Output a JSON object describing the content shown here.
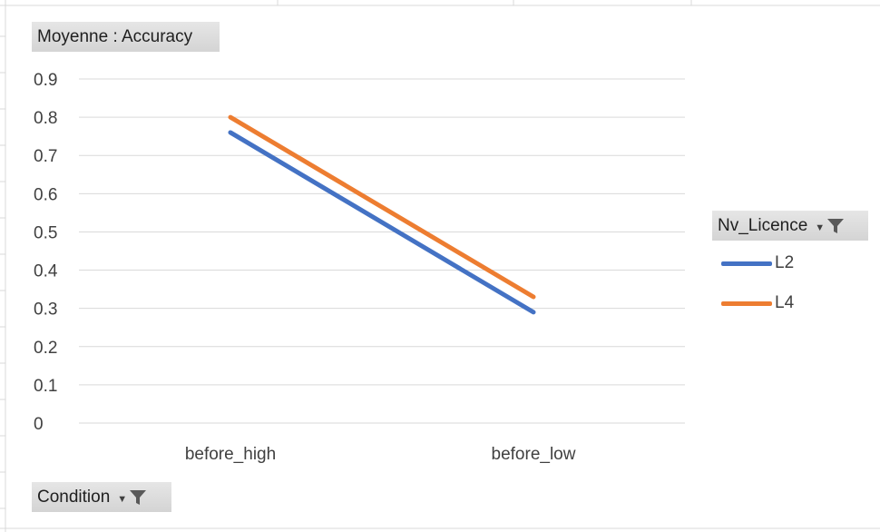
{
  "chart_data": {
    "type": "line",
    "title": "",
    "value_field": "Moyenne : Accuracy",
    "axis_field": "Condition",
    "legend_field": "Nv_Licence",
    "categories": [
      "before_high",
      "before_low"
    ],
    "ylim": [
      0,
      0.9
    ],
    "yticks": [
      "0",
      "0.1",
      "0.2",
      "0.3",
      "0.4",
      "0.5",
      "0.6",
      "0.7",
      "0.8",
      "0.9"
    ],
    "grid": true,
    "legend_position": "right",
    "series": [
      {
        "name": "L2",
        "values": [
          0.76,
          0.29
        ],
        "color": "#4472c4"
      },
      {
        "name": "L4",
        "values": [
          0.8,
          0.33
        ],
        "color": "#ed7d31"
      }
    ]
  },
  "icons": {
    "filter": "funnel-filter-icon",
    "dropdown": "chevron-down-icon"
  }
}
